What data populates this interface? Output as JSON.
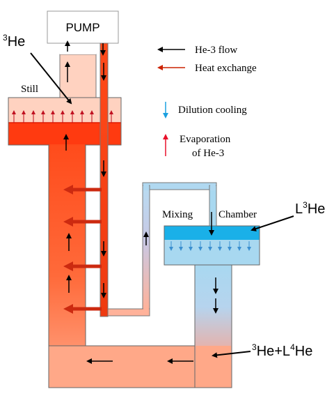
{
  "labels": {
    "pump": "PUMP",
    "he3_main": "He",
    "he3_main_sup": "3",
    "still": "Still",
    "mixing": "Mixing",
    "chamber": "Chamber",
    "l3he": "He",
    "l3he_prefix": "L",
    "l3he_sup": "3",
    "mix_he_sup": "3",
    "mix_he": "He+L",
    "mix_he4_sup": "4",
    "mix_he4": "He"
  },
  "legend": {
    "he3_flow": "He-3 flow",
    "heat_exchange": "Heat exchange",
    "dilution_cooling": "Dilution cooling",
    "evaporation_line1": "Evaporation",
    "evaporation_line2": "of He-3"
  },
  "colors": {
    "flow_arrow": "#000000",
    "heat_arrow": "#cc2200",
    "dilution_arrow": "#1aa0e0",
    "evaporation_arrow": "#e8102a",
    "still_liquid": "#ff3a10",
    "mixing_liquid": "#1ab0e8"
  }
}
